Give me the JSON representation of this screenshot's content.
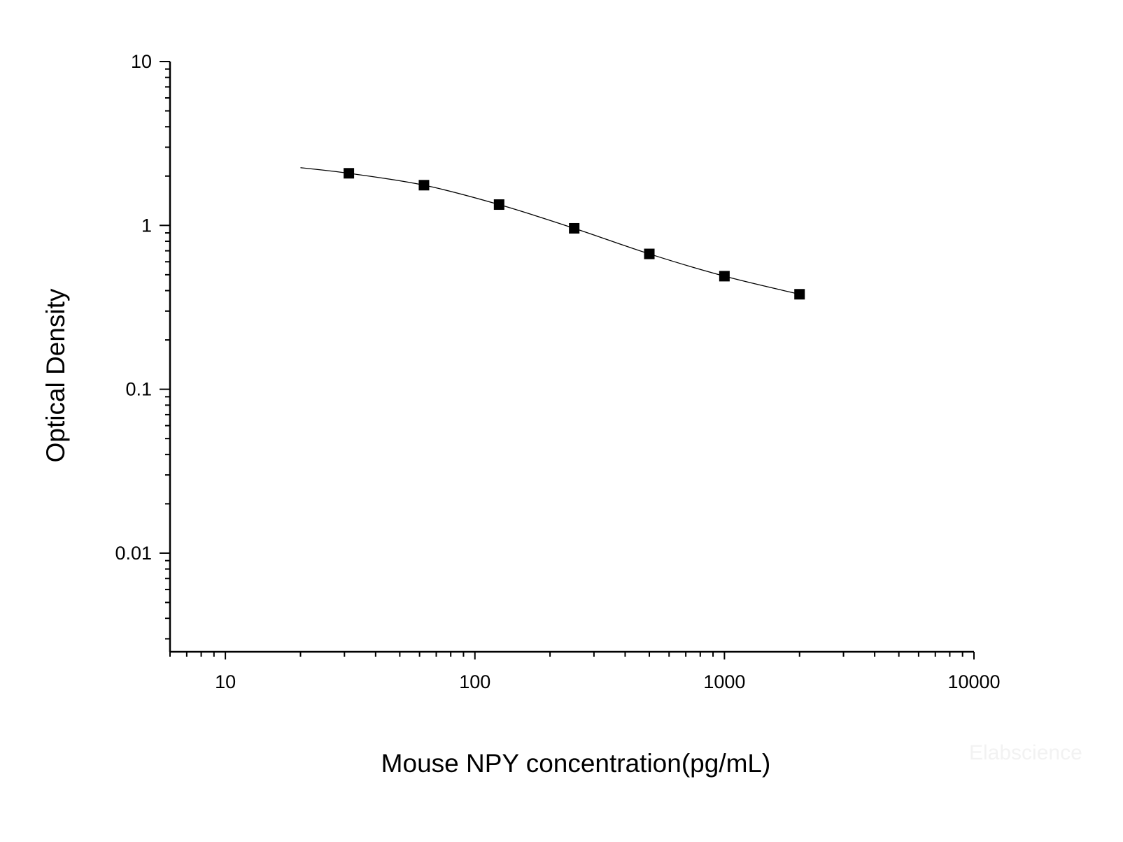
{
  "chart_data": {
    "type": "scatter",
    "title": "",
    "xlabel": "Mouse NPY concentration(pg/mL)",
    "ylabel": "Optical Density",
    "x_scale": "log",
    "y_scale": "log",
    "xlim": [
      6,
      10000
    ],
    "ylim": [
      0.0025,
      10
    ],
    "x_ticks": [
      10,
      100,
      1000,
      10000
    ],
    "x_tick_labels": [
      "10",
      "100",
      "1000",
      "10000"
    ],
    "y_ticks": [
      0.01,
      0.1,
      1,
      10
    ],
    "y_tick_labels": [
      "0.01",
      "0.1",
      "1",
      "10"
    ],
    "grid": false,
    "legend": "none",
    "series": [
      {
        "type": "scatter",
        "marker": "square",
        "color": "#000000",
        "x": [
          31.25,
          62.5,
          125,
          250,
          500,
          1000,
          2000
        ],
        "y": [
          2.08,
          1.76,
          1.34,
          0.96,
          0.67,
          0.49,
          0.38
        ]
      },
      {
        "type": "line",
        "color": "#000000",
        "x": [
          20,
          31.25,
          62.5,
          125,
          250,
          500,
          1000,
          2000
        ],
        "y": [
          2.25,
          2.08,
          1.76,
          1.34,
          0.96,
          0.67,
          0.49,
          0.38
        ]
      }
    ]
  },
  "watermark": "Elabscience"
}
